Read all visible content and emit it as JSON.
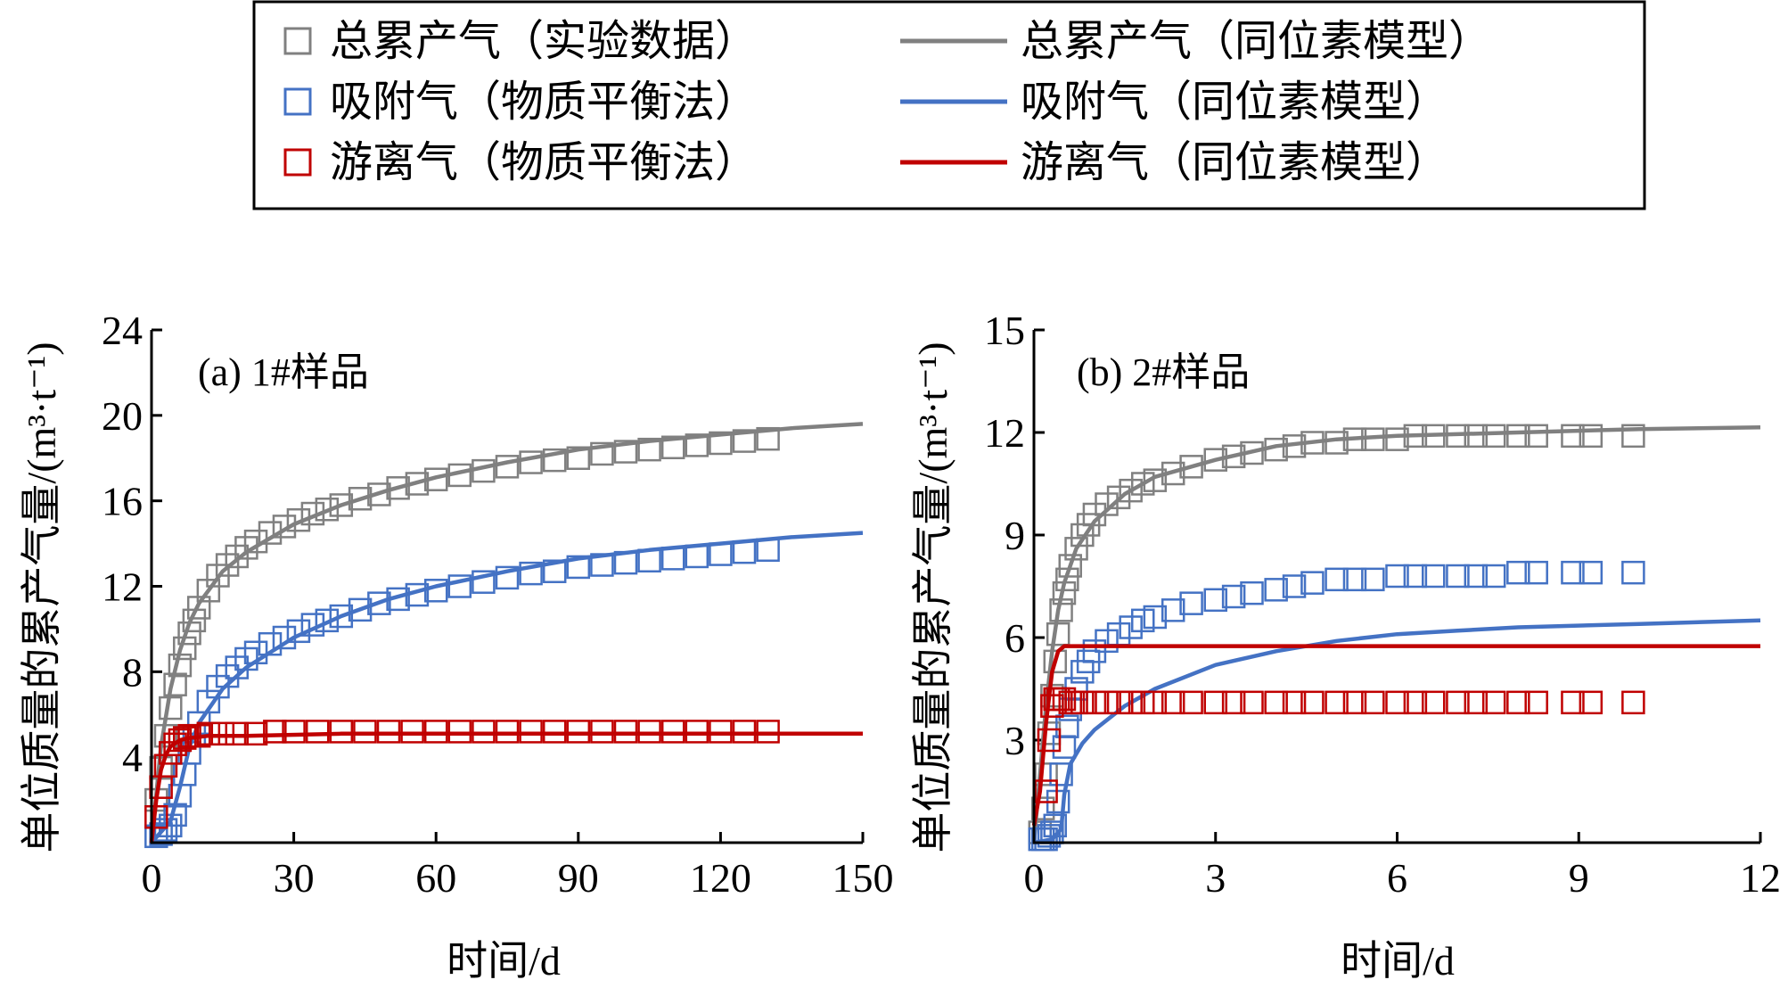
{
  "legend": {
    "items": [
      {
        "label": "总累产气（实验数据）",
        "kind": "marker",
        "color": "#808080"
      },
      {
        "label": "总累产气（同位素模型）",
        "kind": "line",
        "color": "#808080"
      },
      {
        "label": "吸附气（物质平衡法）",
        "kind": "marker",
        "color": "#4472C4"
      },
      {
        "label": "吸附气（同位素模型）",
        "kind": "line",
        "color": "#4472C4"
      },
      {
        "label": "游离气（物质平衡法）",
        "kind": "marker",
        "color": "#C00000"
      },
      {
        "label": "游离气（同位素模型）",
        "kind": "line",
        "color": "#C00000"
      }
    ]
  },
  "chart_data": [
    {
      "type": "scatter",
      "panel_label": "(a) 1#样品",
      "xlabel": "时间/d",
      "ylabel": "单位质量的累产气量/(m³·t⁻¹)",
      "xlim": [
        0,
        150
      ],
      "ylim": [
        0,
        24
      ],
      "xticks": [
        0,
        30,
        60,
        90,
        120,
        150
      ],
      "yticks": [
        4,
        8,
        12,
        16,
        20,
        24
      ],
      "series": [
        {
          "name": "总累产气（实验数据）",
          "style": "marker",
          "color": "#808080",
          "x": [
            1,
            2,
            3,
            4,
            5,
            6,
            7,
            8,
            9,
            10,
            12,
            14,
            16,
            18,
            20,
            22,
            25,
            28,
            31,
            34,
            37,
            40,
            44,
            48,
            52,
            56,
            60,
            65,
            70,
            75,
            80,
            85,
            90,
            95,
            100,
            105,
            110,
            115,
            120,
            125,
            130
          ],
          "y": [
            2.0,
            3.5,
            5.0,
            6.3,
            7.4,
            8.3,
            9.1,
            9.8,
            10.4,
            11.0,
            11.8,
            12.5,
            13.0,
            13.4,
            13.8,
            14.1,
            14.5,
            14.8,
            15.1,
            15.4,
            15.6,
            15.8,
            16.1,
            16.3,
            16.6,
            16.8,
            17.0,
            17.2,
            17.4,
            17.6,
            17.8,
            17.9,
            18.0,
            18.2,
            18.3,
            18.4,
            18.5,
            18.6,
            18.7,
            18.8,
            18.9
          ]
        },
        {
          "name": "总累产气（同位素模型）",
          "style": "line",
          "color": "#808080",
          "x": [
            0,
            2,
            4,
            6,
            8,
            10,
            15,
            20,
            30,
            40,
            50,
            60,
            75,
            90,
            105,
            120,
            135,
            150
          ],
          "y": [
            0,
            4.5,
            7.2,
            9.0,
            10.3,
            11.2,
            12.7,
            13.6,
            14.9,
            15.8,
            16.5,
            17.1,
            17.8,
            18.4,
            18.8,
            19.1,
            19.4,
            19.6
          ]
        },
        {
          "name": "吸附气（物质平衡法）",
          "style": "marker",
          "color": "#4472C4",
          "x": [
            1,
            2,
            3,
            4,
            5,
            6,
            7,
            8,
            9,
            10,
            12,
            14,
            16,
            18,
            20,
            22,
            25,
            28,
            31,
            34,
            37,
            40,
            44,
            48,
            52,
            56,
            60,
            65,
            70,
            75,
            80,
            85,
            90,
            95,
            100,
            105,
            110,
            115,
            120,
            125,
            130
          ],
          "y": [
            0.3,
            0.4,
            0.6,
            0.8,
            1.3,
            2.2,
            3.2,
            4.2,
            5.0,
            5.6,
            6.6,
            7.3,
            7.8,
            8.2,
            8.6,
            8.9,
            9.3,
            9.6,
            9.9,
            10.2,
            10.4,
            10.6,
            10.9,
            11.2,
            11.4,
            11.6,
            11.8,
            12.0,
            12.2,
            12.4,
            12.6,
            12.7,
            12.9,
            13.0,
            13.1,
            13.2,
            13.3,
            13.4,
            13.5,
            13.6,
            13.7
          ]
        },
        {
          "name": "吸附气（同位素模型）",
          "style": "line",
          "color": "#4472C4",
          "x": [
            0,
            4,
            6,
            8,
            10,
            15,
            20,
            30,
            40,
            50,
            60,
            75,
            90,
            105,
            120,
            135,
            150
          ],
          "y": [
            0,
            1.0,
            2.6,
            4.5,
            5.6,
            7.2,
            8.2,
            9.6,
            10.6,
            11.4,
            12.0,
            12.7,
            13.3,
            13.7,
            14.0,
            14.3,
            14.5
          ]
        },
        {
          "name": "游离气（物质平衡法）",
          "style": "marker",
          "color": "#C00000",
          "x": [
            1,
            2,
            3,
            4,
            5,
            6,
            7,
            8,
            10,
            12,
            15,
            18,
            22,
            26,
            30,
            35,
            40,
            45,
            50,
            55,
            60,
            65,
            70,
            75,
            80,
            85,
            90,
            95,
            100,
            105,
            110,
            115,
            120,
            125,
            130
          ],
          "y": [
            1.2,
            2.6,
            3.6,
            4.2,
            4.6,
            4.8,
            4.9,
            5.0,
            5.0,
            5.1,
            5.1,
            5.1,
            5.1,
            5.2,
            5.2,
            5.2,
            5.2,
            5.2,
            5.2,
            5.2,
            5.2,
            5.2,
            5.2,
            5.2,
            5.2,
            5.2,
            5.2,
            5.2,
            5.2,
            5.2,
            5.2,
            5.2,
            5.2,
            5.2,
            5.2
          ]
        },
        {
          "name": "游离气（同位素模型）",
          "style": "line",
          "color": "#C00000",
          "x": [
            0,
            1,
            2,
            3,
            4,
            6,
            8,
            12,
            20,
            40,
            60,
            90,
            120,
            150
          ],
          "y": [
            0,
            2.0,
            3.4,
            4.1,
            4.5,
            4.8,
            4.9,
            5.0,
            5.0,
            5.1,
            5.1,
            5.1,
            5.1,
            5.1
          ]
        }
      ]
    },
    {
      "type": "scatter",
      "panel_label": "(b) 2#样品",
      "xlabel": "时间/d",
      "ylabel": "单位质量的累产气量/(m³·t⁻¹)",
      "xlim": [
        0,
        12
      ],
      "ylim": [
        0,
        15
      ],
      "xticks": [
        0,
        3,
        6,
        9,
        12
      ],
      "yticks": [
        3,
        6,
        9,
        12,
        15
      ],
      "series": [
        {
          "name": "总累产气（实验数据）",
          "style": "marker",
          "color": "#808080",
          "x": [
            0.1,
            0.15,
            0.2,
            0.25,
            0.3,
            0.35,
            0.4,
            0.45,
            0.5,
            0.55,
            0.6,
            0.7,
            0.8,
            0.9,
            1.0,
            1.2,
            1.4,
            1.6,
            1.8,
            2.0,
            2.3,
            2.6,
            3.0,
            3.3,
            3.6,
            4.0,
            4.3,
            4.6,
            5.0,
            5.3,
            5.6,
            6.0,
            6.3,
            6.6,
            7.0,
            7.3,
            7.6,
            8.0,
            8.3,
            8.9,
            9.2,
            9.9
          ],
          "y": [
            0.3,
            1.0,
            2.0,
            3.2,
            4.3,
            5.3,
            6.1,
            6.8,
            7.3,
            7.7,
            8.1,
            8.6,
            9.0,
            9.3,
            9.6,
            9.9,
            10.1,
            10.3,
            10.5,
            10.6,
            10.8,
            11.0,
            11.2,
            11.3,
            11.4,
            11.5,
            11.6,
            11.7,
            11.7,
            11.8,
            11.8,
            11.8,
            11.9,
            11.9,
            11.9,
            11.9,
            11.9,
            11.9,
            11.9,
            11.9,
            11.9,
            11.9
          ]
        },
        {
          "name": "总累产气（同位素模型）",
          "style": "line",
          "color": "#808080",
          "x": [
            0,
            0.1,
            0.2,
            0.3,
            0.4,
            0.5,
            0.7,
            1.0,
            1.5,
            2.0,
            3.0,
            4.0,
            5.0,
            6.0,
            8.0,
            10.0,
            12.0
          ],
          "y": [
            0,
            2.0,
            4.0,
            5.6,
            6.8,
            7.6,
            8.6,
            9.4,
            10.2,
            10.7,
            11.2,
            11.6,
            11.8,
            11.9,
            12.0,
            12.1,
            12.15
          ]
        },
        {
          "name": "吸附气（物质平衡法）",
          "style": "marker",
          "color": "#4472C4",
          "x": [
            0.1,
            0.15,
            0.2,
            0.25,
            0.3,
            0.35,
            0.4,
            0.45,
            0.5,
            0.55,
            0.6,
            0.7,
            0.8,
            0.9,
            1.0,
            1.2,
            1.4,
            1.6,
            1.8,
            2.0,
            2.3,
            2.6,
            3.0,
            3.3,
            3.6,
            4.0,
            4.3,
            4.6,
            5.0,
            5.3,
            5.6,
            6.0,
            6.3,
            6.6,
            7.0,
            7.3,
            7.6,
            8.0,
            8.3,
            8.9,
            9.2,
            9.9
          ],
          "y": [
            0.1,
            0.1,
            0.1,
            0.2,
            0.3,
            0.5,
            1.2,
            2.0,
            2.8,
            3.4,
            3.9,
            4.5,
            5.0,
            5.3,
            5.6,
            5.9,
            6.1,
            6.3,
            6.5,
            6.6,
            6.8,
            7.0,
            7.1,
            7.2,
            7.3,
            7.4,
            7.5,
            7.6,
            7.7,
            7.7,
            7.7,
            7.8,
            7.8,
            7.8,
            7.8,
            7.8,
            7.8,
            7.9,
            7.9,
            7.9,
            7.9,
            7.9
          ]
        },
        {
          "name": "吸附气（同位素模型）",
          "style": "line",
          "color": "#4472C4",
          "x": [
            0,
            0.3,
            0.45,
            0.5,
            0.6,
            0.8,
            1.0,
            1.5,
            2.0,
            3.0,
            4.0,
            5.0,
            6.0,
            7.0,
            8.0,
            10.0,
            12.0
          ],
          "y": [
            0,
            0.1,
            0.4,
            1.4,
            2.3,
            2.9,
            3.3,
            4.0,
            4.5,
            5.2,
            5.6,
            5.9,
            6.1,
            6.2,
            6.3,
            6.4,
            6.5
          ]
        },
        {
          "name": "游离气（物质平衡法）",
          "style": "marker",
          "color": "#C00000",
          "x": [
            0.2,
            0.25,
            0.3,
            0.35,
            0.4,
            0.5,
            0.6,
            0.7,
            0.8,
            1.0,
            1.2,
            1.4,
            1.6,
            1.8,
            2.0,
            2.3,
            2.6,
            3.0,
            3.3,
            3.6,
            4.0,
            4.3,
            4.6,
            5.0,
            5.3,
            5.6,
            6.0,
            6.3,
            6.6,
            7.0,
            7.3,
            7.6,
            8.0,
            8.3,
            8.9,
            9.2,
            9.9
          ],
          "y": [
            1.5,
            3.0,
            4.0,
            4.2,
            4.2,
            4.2,
            4.1,
            4.1,
            4.1,
            4.1,
            4.1,
            4.1,
            4.1,
            4.1,
            4.1,
            4.1,
            4.1,
            4.1,
            4.1,
            4.1,
            4.1,
            4.1,
            4.1,
            4.1,
            4.1,
            4.1,
            4.1,
            4.1,
            4.1,
            4.1,
            4.1,
            4.1,
            4.1,
            4.1,
            4.1,
            4.1,
            4.1
          ]
        },
        {
          "name": "游离气（同位素模型）",
          "style": "line",
          "color": "#C00000",
          "x": [
            0,
            0.1,
            0.2,
            0.3,
            0.4,
            0.5,
            1.0,
            2.0,
            4.0,
            6.0,
            8.0,
            10.0,
            12.0
          ],
          "y": [
            0.5,
            1.5,
            3.5,
            5.0,
            5.6,
            5.75,
            5.75,
            5.75,
            5.75,
            5.75,
            5.75,
            5.75,
            5.75
          ]
        }
      ]
    }
  ]
}
